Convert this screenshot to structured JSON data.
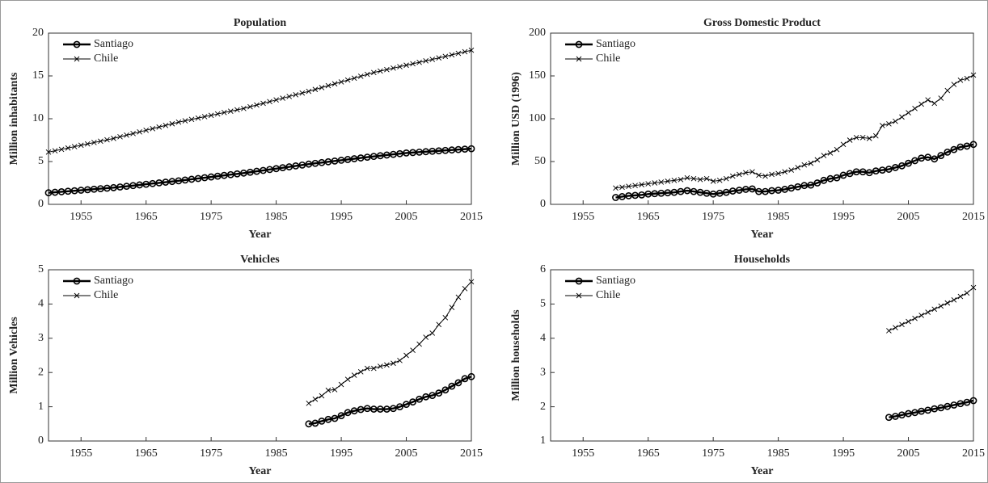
{
  "chart_data": [
    {
      "type": "line",
      "title": "Population",
      "x_label": "Year",
      "y_label": "Million inhabitants",
      "x": [
        1950,
        1951,
        1952,
        1953,
        1954,
        1955,
        1956,
        1957,
        1958,
        1959,
        1960,
        1961,
        1962,
        1963,
        1964,
        1965,
        1966,
        1967,
        1968,
        1969,
        1970,
        1971,
        1972,
        1973,
        1974,
        1975,
        1976,
        1977,
        1978,
        1979,
        1980,
        1981,
        1982,
        1983,
        1984,
        1985,
        1986,
        1987,
        1988,
        1989,
        1990,
        1991,
        1992,
        1993,
        1994,
        1995,
        1996,
        1997,
        1998,
        1999,
        2000,
        2001,
        2002,
        2003,
        2004,
        2005,
        2006,
        2007,
        2008,
        2009,
        2010,
        2011,
        2012,
        2013,
        2014,
        2015
      ],
      "xlim": [
        1950,
        2015
      ],
      "xticks": [
        1955,
        1965,
        1975,
        1985,
        1995,
        2005,
        2015
      ],
      "ylim": [
        0,
        20
      ],
      "yticks": [
        0,
        5,
        10,
        15,
        20
      ],
      "legend": "upper-left",
      "series": [
        {
          "name": "Santiago",
          "color": "#000000",
          "marker": "circle",
          "values": [
            1.35,
            1.41,
            1.47,
            1.53,
            1.59,
            1.65,
            1.71,
            1.77,
            1.83,
            1.89,
            1.95,
            2.03,
            2.11,
            2.19,
            2.27,
            2.35,
            2.43,
            2.51,
            2.59,
            2.67,
            2.75,
            2.84,
            2.93,
            3.02,
            3.11,
            3.2,
            3.29,
            3.38,
            3.47,
            3.56,
            3.65,
            3.75,
            3.86,
            3.96,
            4.07,
            4.17,
            4.28,
            4.38,
            4.49,
            4.59,
            4.7,
            4.79,
            4.88,
            4.97,
            5.06,
            5.15,
            5.24,
            5.33,
            5.42,
            5.51,
            5.6,
            5.68,
            5.76,
            5.84,
            5.92,
            6.0,
            6.05,
            6.1,
            6.15,
            6.2,
            6.25,
            6.3,
            6.35,
            6.4,
            6.45,
            6.5
          ]
        },
        {
          "name": "Chile",
          "color": "#000000",
          "marker": "x",
          "values": [
            6.1,
            6.26,
            6.42,
            6.58,
            6.74,
            6.9,
            7.06,
            7.22,
            7.38,
            7.54,
            7.7,
            7.89,
            8.08,
            8.27,
            8.46,
            8.65,
            8.84,
            9.03,
            9.22,
            9.41,
            9.6,
            9.76,
            9.92,
            10.08,
            10.24,
            10.4,
            10.56,
            10.72,
            10.88,
            11.04,
            11.2,
            11.4,
            11.6,
            11.8,
            12.0,
            12.2,
            12.4,
            12.6,
            12.8,
            13.0,
            13.2,
            13.42,
            13.64,
            13.86,
            14.08,
            14.3,
            14.52,
            14.74,
            14.96,
            15.18,
            15.4,
            15.57,
            15.74,
            15.91,
            16.08,
            16.25,
            16.42,
            16.59,
            16.76,
            16.93,
            17.1,
            17.28,
            17.46,
            17.64,
            17.82,
            18.0
          ]
        }
      ]
    },
    {
      "type": "line",
      "title": "Gross Domestic Product",
      "x_label": "Year",
      "y_label": "Million USD (1996)",
      "x": [
        1960,
        1961,
        1962,
        1963,
        1964,
        1965,
        1966,
        1967,
        1968,
        1969,
        1970,
        1971,
        1972,
        1973,
        1974,
        1975,
        1976,
        1977,
        1978,
        1979,
        1980,
        1981,
        1982,
        1983,
        1984,
        1985,
        1986,
        1987,
        1988,
        1989,
        1990,
        1991,
        1992,
        1993,
        1994,
        1995,
        1996,
        1997,
        1998,
        1999,
        2000,
        2001,
        2002,
        2003,
        2004,
        2005,
        2006,
        2007,
        2008,
        2009,
        2010,
        2011,
        2012,
        2013,
        2014,
        2015
      ],
      "xlim": [
        1950,
        2015
      ],
      "xticks": [
        1955,
        1965,
        1975,
        1985,
        1995,
        2005,
        2015
      ],
      "ylim": [
        0,
        200
      ],
      "yticks": [
        0,
        50,
        100,
        150,
        200
      ],
      "legend": "upper-left",
      "series": [
        {
          "name": "Santiago",
          "color": "#000000",
          "marker": "circle",
          "values": [
            8,
            9,
            10,
            10.5,
            11,
            12,
            12.5,
            13,
            13.5,
            14,
            15,
            16,
            15,
            14,
            13,
            12,
            13,
            14,
            15.5,
            16.5,
            17.5,
            18,
            15,
            15,
            16,
            16.5,
            17.5,
            19,
            20.5,
            22,
            22.5,
            25,
            28,
            30,
            31,
            34,
            36,
            38,
            38,
            37,
            39,
            40,
            41,
            43,
            45,
            48,
            51,
            54,
            55,
            53,
            57,
            61,
            64,
            67,
            68,
            70
          ]
        },
        {
          "name": "Chile",
          "color": "#000000",
          "marker": "x",
          "values": [
            19,
            20,
            21,
            22,
            23,
            24,
            25,
            26,
            27,
            28,
            29,
            31,
            30,
            29,
            30,
            27,
            28,
            30,
            33,
            35,
            37,
            38,
            34,
            33,
            35,
            36,
            38,
            40,
            43,
            46,
            48,
            52,
            57,
            60,
            64,
            70,
            75,
            78,
            78,
            77,
            80,
            92,
            94,
            97,
            102,
            107,
            112,
            117,
            122,
            118,
            124,
            133,
            140,
            145,
            147,
            151
          ]
        }
      ]
    },
    {
      "type": "line",
      "title": "Vehicles",
      "x_label": "Year",
      "y_label": "Million Vehicles",
      "x": [
        1990,
        1991,
        1992,
        1993,
        1994,
        1995,
        1996,
        1997,
        1998,
        1999,
        2000,
        2001,
        2002,
        2003,
        2004,
        2005,
        2006,
        2007,
        2008,
        2009,
        2010,
        2011,
        2012,
        2013,
        2014,
        2015
      ],
      "xlim": [
        1950,
        2015
      ],
      "xticks": [
        1955,
        1965,
        1975,
        1985,
        1995,
        2005,
        2015
      ],
      "ylim": [
        0,
        5
      ],
      "yticks": [
        0,
        1,
        2,
        3,
        4,
        5
      ],
      "legend": "upper-left",
      "series": [
        {
          "name": "Santiago",
          "color": "#000000",
          "marker": "circle",
          "values": [
            0.5,
            0.52,
            0.58,
            0.63,
            0.66,
            0.74,
            0.83,
            0.88,
            0.92,
            0.95,
            0.93,
            0.93,
            0.93,
            0.95,
            1.0,
            1.07,
            1.14,
            1.22,
            1.29,
            1.33,
            1.4,
            1.49,
            1.6,
            1.7,
            1.82,
            1.88
          ]
        },
        {
          "name": "Chile",
          "color": "#000000",
          "marker": "x",
          "values": [
            1.1,
            1.22,
            1.32,
            1.48,
            1.5,
            1.65,
            1.8,
            1.92,
            2.02,
            2.12,
            2.12,
            2.18,
            2.22,
            2.27,
            2.35,
            2.5,
            2.65,
            2.83,
            3.03,
            3.15,
            3.4,
            3.6,
            3.9,
            4.2,
            4.45,
            4.65
          ]
        }
      ]
    },
    {
      "type": "line",
      "title": "Households",
      "x_label": "Year",
      "y_label": "Million households",
      "x": [
        2002,
        2003,
        2004,
        2005,
        2006,
        2007,
        2008,
        2009,
        2010,
        2011,
        2012,
        2013,
        2014,
        2015
      ],
      "xlim": [
        1950,
        2015
      ],
      "xticks": [
        1955,
        1965,
        1975,
        1985,
        1995,
        2005,
        2015
      ],
      "ylim": [
        1,
        6
      ],
      "yticks": [
        1,
        2,
        3,
        4,
        5,
        6
      ],
      "legend": "upper-left",
      "series": [
        {
          "name": "Santiago",
          "color": "#000000",
          "marker": "circle",
          "values": [
            1.69,
            1.72,
            1.76,
            1.8,
            1.83,
            1.87,
            1.9,
            1.94,
            1.97,
            2.01,
            2.05,
            2.09,
            2.13,
            2.18
          ]
        },
        {
          "name": "Chile",
          "color": "#000000",
          "marker": "x",
          "values": [
            4.22,
            4.31,
            4.4,
            4.49,
            4.58,
            4.67,
            4.76,
            4.85,
            4.94,
            5.03,
            5.12,
            5.22,
            5.32,
            5.48
          ]
        }
      ]
    }
  ]
}
